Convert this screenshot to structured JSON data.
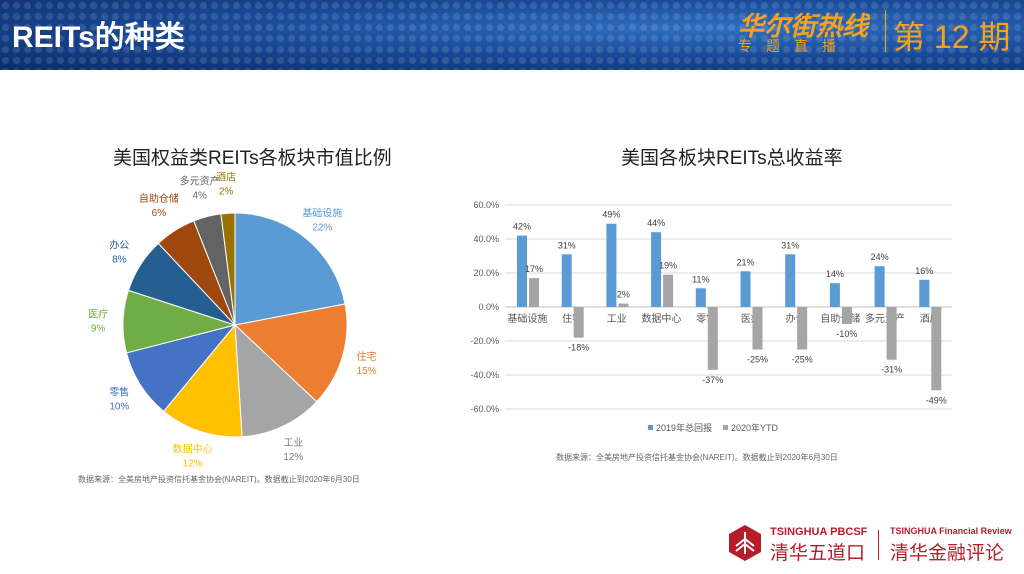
{
  "header": {
    "title": "REITs的种类",
    "brand": "华尔街热线",
    "brand_sub": "专题直播",
    "issue": "第 12 期"
  },
  "chart_data": [
    {
      "type": "pie",
      "title": "美国权益类REITs各板块市值比例",
      "slices": [
        {
          "label": "基础设施",
          "value": 22,
          "text": "22%",
          "color": "#5b9bd5"
        },
        {
          "label": "住宅",
          "value": 15,
          "text": "15%",
          "color": "#ed7d31"
        },
        {
          "label": "工业",
          "value": 12,
          "text": "12%",
          "color": "#a5a5a5"
        },
        {
          "label": "数据中心",
          "value": 12,
          "text": "12%",
          "color": "#ffc000"
        },
        {
          "label": "零售",
          "value": 10,
          "text": "10%",
          "color": "#4472c4"
        },
        {
          "label": "医疗",
          "value": 9,
          "text": "9%",
          "color": "#70ad47"
        },
        {
          "label": "办公",
          "value": 8,
          "text": "8%",
          "color": "#255e91"
        },
        {
          "label": "自助仓储",
          "value": 6,
          "text": "6%",
          "color": "#9e480e"
        },
        {
          "label": "多元资产",
          "value": 4,
          "text": "4%",
          "color": "#636363"
        },
        {
          "label": "酒店",
          "value": 2,
          "text": "2%",
          "color": "#997300"
        }
      ],
      "source": "数据来源：全美房地产投资信托基金协会(NAREIT)。数据截止到2020年6月30日"
    },
    {
      "type": "bar",
      "title": "美国各板块REITs总收益率",
      "categories": [
        "基础设施",
        "住宅",
        "工业",
        "数据中心",
        "零售",
        "医疗",
        "办公",
        "自助仓储",
        "多元资产",
        "酒店"
      ],
      "series": [
        {
          "name": "2019年总回报",
          "color": "#5b9bd5",
          "values": [
            42,
            31,
            49,
            44,
            11,
            21,
            31,
            14,
            24,
            16
          ]
        },
        {
          "name": "2020年YTD",
          "color": "#a5a5a5",
          "values": [
            17,
            -18,
            2,
            19,
            -37,
            -25,
            -25,
            -10,
            -31,
            -49
          ]
        }
      ],
      "ylim": [
        -60,
        60
      ],
      "yticks": [
        "60.0%",
        "40.0%",
        "20.0%",
        "0.0%",
        "-20.0%",
        "-40.0%",
        "-60.0%"
      ],
      "legend": "bottom",
      "source": "数据来源：全美房地产投资信托基金协会(NAREIT)。数据截止到2020年6月30日"
    }
  ],
  "footer": {
    "logo1_en": "TSINGHUA PBCSF",
    "logo1_cn": "清华五道口",
    "logo2_en": "TSINGHUA Financial Review",
    "logo2_cn": "清华金融评论"
  }
}
